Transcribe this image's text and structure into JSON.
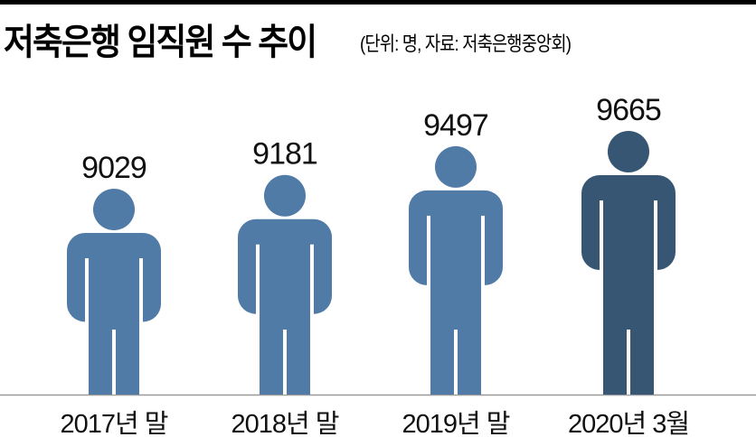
{
  "title": "저축은행 임직원 수 추이",
  "subtitle": "(단위: 명, 자료: 저축은행중앙회)",
  "colors": {
    "normal": "#4f7ba6",
    "highlight": "#375673",
    "baseline": "#999999"
  },
  "chart_data": {
    "type": "bar",
    "style": "pictogram",
    "title": "저축은행 임직원 수 추이",
    "unit": "명",
    "source": "저축은행중앙회",
    "categories": [
      "2017년 말",
      "2018년 말",
      "2019년 말",
      "2020년 3월"
    ],
    "values": [
      9029,
      9181,
      9497,
      9665
    ],
    "highlight_index": 3,
    "grid": false
  }
}
